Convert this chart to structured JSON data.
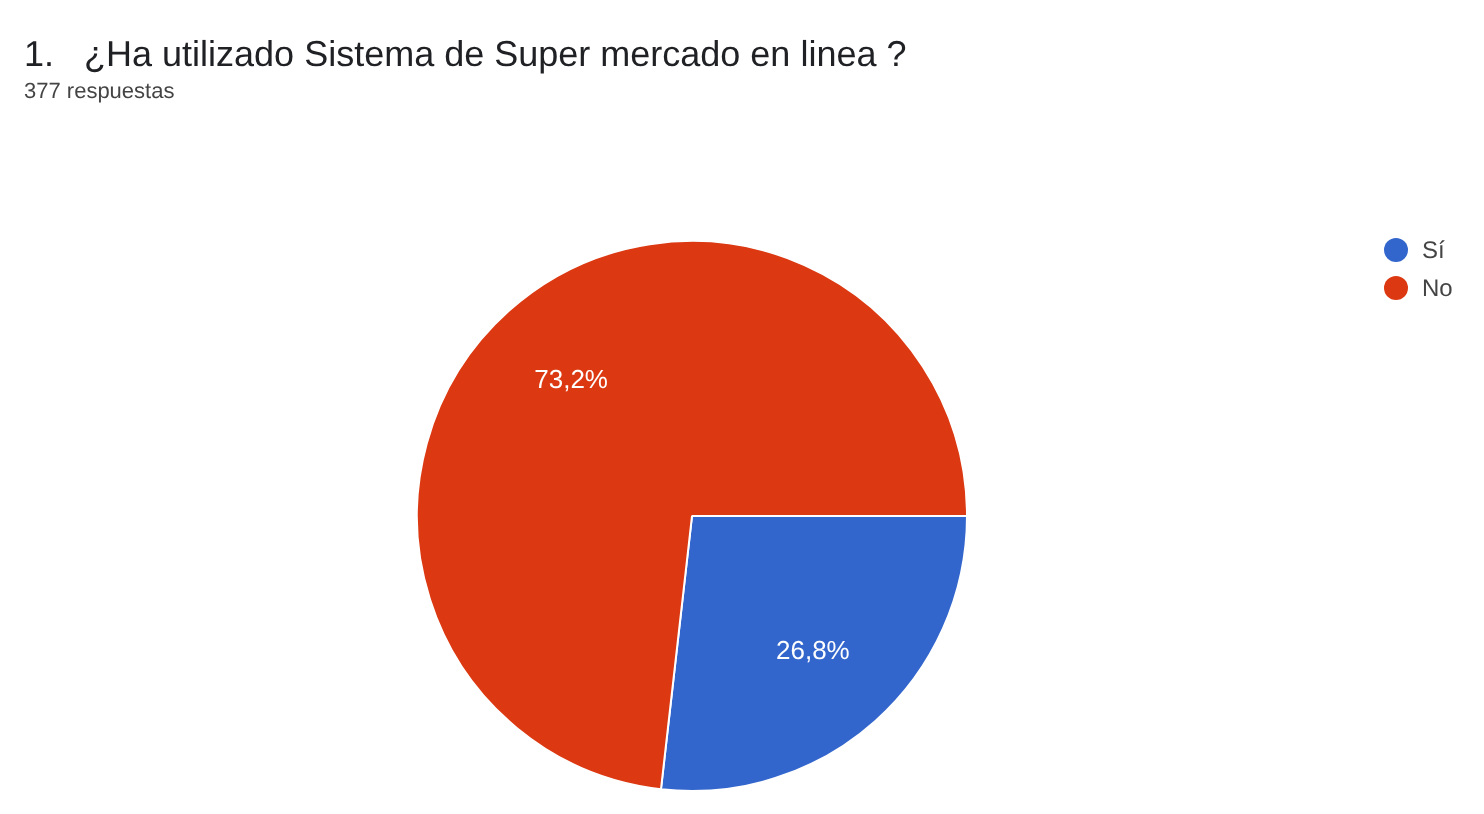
{
  "chart_data": {
    "type": "pie",
    "title": "1.   ¿Ha utilizado Sistema de Super mercado en linea ?",
    "subtitle": "377 respuestas",
    "categories": [
      "Sí",
      "No"
    ],
    "values": [
      26.8,
      73.2
    ],
    "colors": [
      "#3366cc",
      "#dc3912"
    ],
    "value_labels": [
      "26,8%",
      "73,2%"
    ],
    "legend": "top right"
  }
}
